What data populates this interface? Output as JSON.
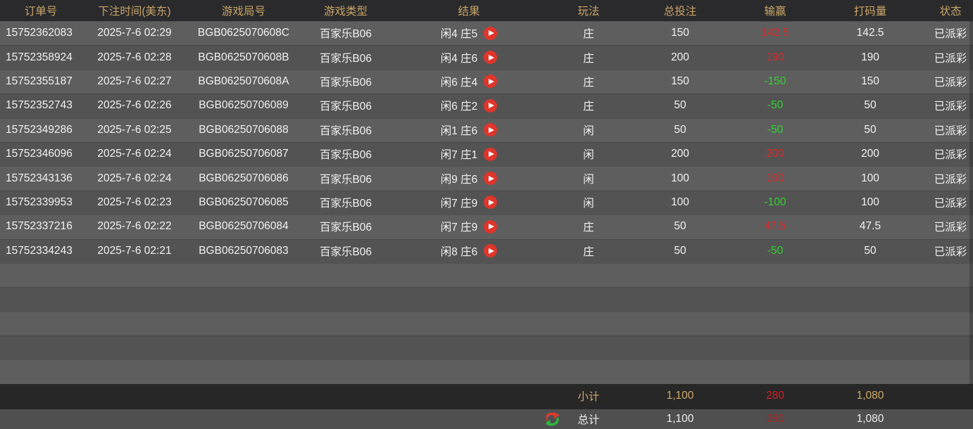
{
  "table": {
    "columns": [
      {
        "key": "order",
        "label": "订单号"
      },
      {
        "key": "time",
        "label": "下注时间(美东)"
      },
      {
        "key": "round",
        "label": "游戏局号"
      },
      {
        "key": "type",
        "label": "游戏类型"
      },
      {
        "key": "result",
        "label": "结果"
      },
      {
        "key": "play",
        "label": "玩法"
      },
      {
        "key": "bet",
        "label": "总投注"
      },
      {
        "key": "winloss",
        "label": "输赢"
      },
      {
        "key": "rolling",
        "label": "打码量"
      },
      {
        "key": "status",
        "label": "状态"
      }
    ],
    "rows": [
      {
        "order": "15752362083",
        "time": "2025-7-6 02:29",
        "round": "BGB0625070608C",
        "type": "百家乐B06",
        "result": "闲4 庄5",
        "play": "庄",
        "bet": "150",
        "winloss": "142.5",
        "wl": "win",
        "rolling": "142.5",
        "status": "已派彩"
      },
      {
        "order": "15752358924",
        "time": "2025-7-6 02:28",
        "round": "BGB0625070608B",
        "type": "百家乐B06",
        "result": "闲4 庄6",
        "play": "庄",
        "bet": "200",
        "winloss": "190",
        "wl": "win",
        "rolling": "190",
        "status": "已派彩"
      },
      {
        "order": "15752355187",
        "time": "2025-7-6 02:27",
        "round": "BGB0625070608A",
        "type": "百家乐B06",
        "result": "闲6 庄4",
        "play": "庄",
        "bet": "150",
        "winloss": "-150",
        "wl": "loss",
        "rolling": "150",
        "status": "已派彩"
      },
      {
        "order": "15752352743",
        "time": "2025-7-6 02:26",
        "round": "BGB06250706089",
        "type": "百家乐B06",
        "result": "闲6 庄2",
        "play": "庄",
        "bet": "50",
        "winloss": "-50",
        "wl": "loss",
        "rolling": "50",
        "status": "已派彩"
      },
      {
        "order": "15752349286",
        "time": "2025-7-6 02:25",
        "round": "BGB06250706088",
        "type": "百家乐B06",
        "result": "闲1 庄6",
        "play": "闲",
        "bet": "50",
        "winloss": "-50",
        "wl": "loss",
        "rolling": "50",
        "status": "已派彩"
      },
      {
        "order": "15752346096",
        "time": "2025-7-6 02:24",
        "round": "BGB06250706087",
        "type": "百家乐B06",
        "result": "闲7 庄1",
        "play": "闲",
        "bet": "200",
        "winloss": "200",
        "wl": "win",
        "rolling": "200",
        "status": "已派彩"
      },
      {
        "order": "15752343136",
        "time": "2025-7-6 02:24",
        "round": "BGB06250706086",
        "type": "百家乐B06",
        "result": "闲9 庄6",
        "play": "闲",
        "bet": "100",
        "winloss": "100",
        "wl": "win",
        "rolling": "100",
        "status": "已派彩"
      },
      {
        "order": "15752339953",
        "time": "2025-7-6 02:23",
        "round": "BGB06250706085",
        "type": "百家乐B06",
        "result": "闲7 庄9",
        "play": "闲",
        "bet": "100",
        "winloss": "-100",
        "wl": "loss",
        "rolling": "100",
        "status": "已派彩"
      },
      {
        "order": "15752337216",
        "time": "2025-7-6 02:22",
        "round": "BGB06250706084",
        "type": "百家乐B06",
        "result": "闲7 庄9",
        "play": "庄",
        "bet": "50",
        "winloss": "47.5",
        "wl": "win",
        "rolling": "47.5",
        "status": "已派彩"
      },
      {
        "order": "15752334243",
        "time": "2025-7-6 02:21",
        "round": "BGB06250706083",
        "type": "百家乐B06",
        "result": "闲8 庄6",
        "play": "庄",
        "bet": "50",
        "winloss": "-50",
        "wl": "loss",
        "rolling": "50",
        "status": "已派彩"
      }
    ],
    "empty_row_count": 5
  },
  "summary": {
    "subtotal": {
      "label": "小计",
      "bet": "1,100",
      "winloss": "280",
      "rolling": "1,080"
    },
    "total": {
      "label": "总计",
      "bet": "1,100",
      "winloss": "280",
      "rolling": "1,080"
    }
  },
  "icons": {
    "play": "play-icon",
    "refresh": "refresh-icon"
  },
  "colors": {
    "header_bg": "#2a2a2c",
    "header_text": "#c9a567",
    "row_odd": "#5e5e5e",
    "row_even": "#535353",
    "row_text": "#f2f2f2",
    "win_red": "#e02525",
    "loss_green": "#2fd32f",
    "subtotal_bg": "#272727",
    "subtotal_text": "#cfa96b",
    "subtotal_red": "#d42020",
    "total_bg": "#4f4f4f",
    "total_text": "#ececec",
    "total_red": "#aa2222",
    "play_icon": "#df352b",
    "refresh_red": "#e23b2e",
    "refresh_green": "#2eb83a"
  }
}
